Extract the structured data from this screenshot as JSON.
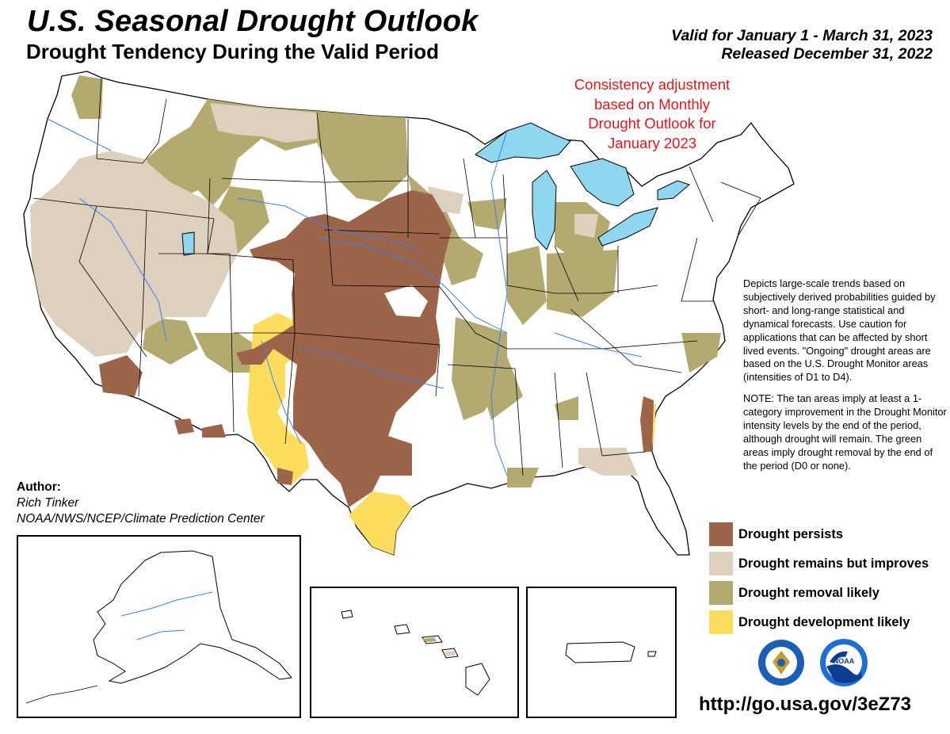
{
  "header": {
    "title": "U.S. Seasonal Drought Outlook",
    "subtitle": "Drought Tendency During the Valid Period",
    "valid_line": "Valid for January 1 - March 31, 2023",
    "released_line": "Released December 31, 2022"
  },
  "consistency_note": {
    "line1": "Consistency adjustment",
    "line2": "based on Monthly",
    "line3": "Drought Outlook for",
    "line4": "January 2023"
  },
  "description": {
    "para1": "Depicts large-scale trends based on subjectively derived probabilities guided by short- and long-range statistical and dynamical forecasts. Use caution for applications that can be affected by short lived events. \"Ongoing\" drought areas are based on the U.S. Drought Monitor areas (intensities of D1 to D4).",
    "para2": "NOTE: The tan areas imply at least a 1-category improvement in the Drought Monitor intensity levels by the end of the period, although drought will remain. The green areas imply drought removal by the end of the period (D0 or none)."
  },
  "legend": [
    {
      "label": "Drought persists",
      "color": "#9c6449"
    },
    {
      "label": "Drought remains but improves",
      "color": "#ddd0bd"
    },
    {
      "label": "Drought removal likely",
      "color": "#b3aa70"
    },
    {
      "label": "Drought development likely",
      "color": "#fcdd5e"
    }
  ],
  "author": {
    "label": "Author:",
    "name": "Rich Tinker",
    "org": "NOAA/NWS/NCEP/Climate Prediction Center"
  },
  "url": "http://go.usa.gov/3eZ73",
  "colors": {
    "water": "#8fd6ef",
    "rivers": "#3a7ff0",
    "consistency_text": "#e8141b"
  },
  "logos": [
    "doc-seal-icon",
    "noaa-logo-icon"
  ],
  "logo_text": {
    "noaa": "NOAA"
  }
}
